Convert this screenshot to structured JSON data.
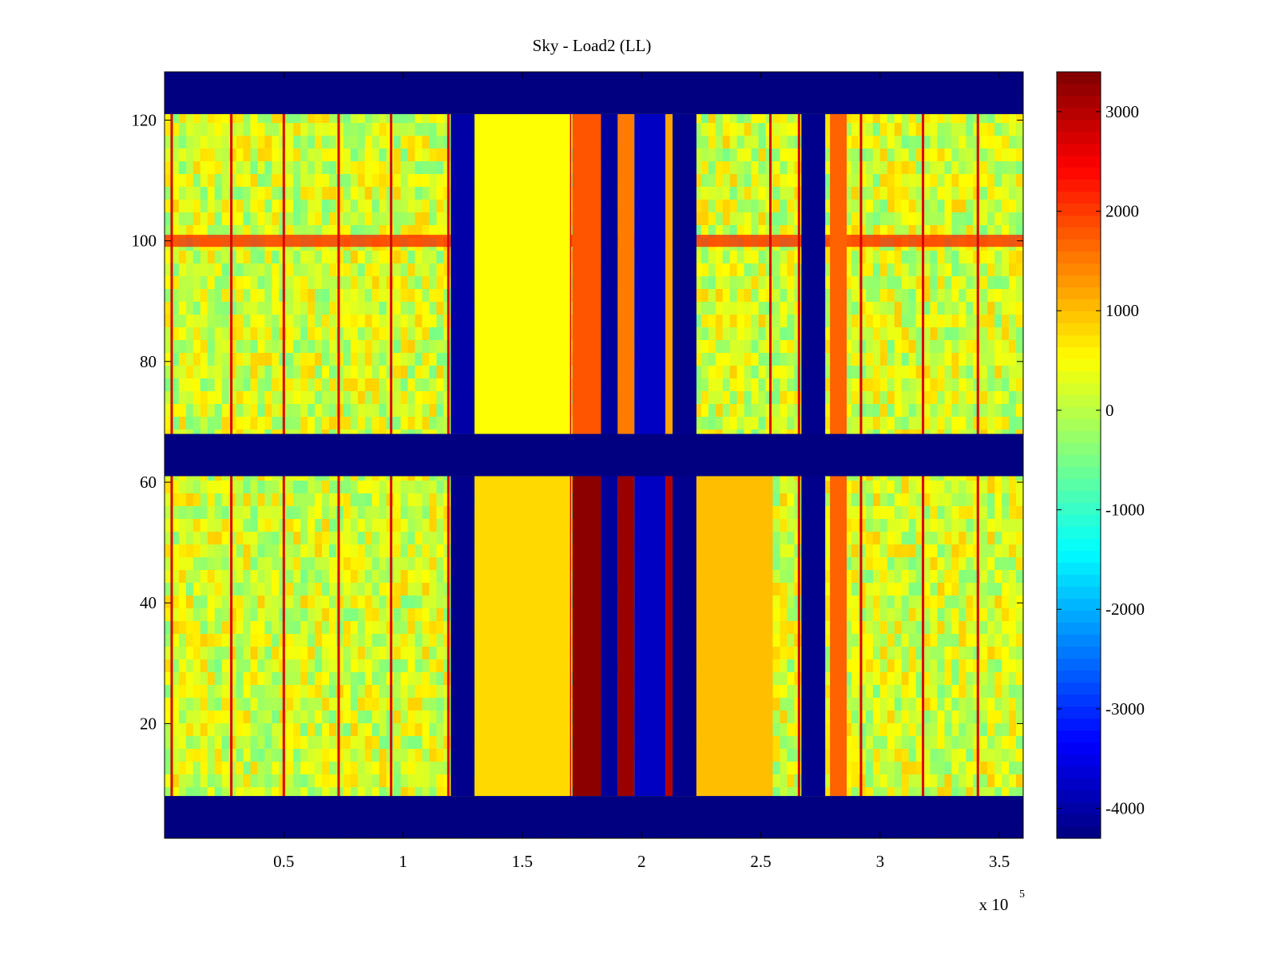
{
  "chart_data": {
    "type": "heatmap",
    "title": "Sky - Load2 (LL)",
    "xlabel": "",
    "ylabel": "",
    "x_multiplier_label": "x 10",
    "x_multiplier_exponent": "5",
    "xlim": [
      0,
      360000
    ],
    "ylim": [
      1,
      128
    ],
    "x_ticks": [
      {
        "value": 50000,
        "label": "0.5"
      },
      {
        "value": 100000,
        "label": "1"
      },
      {
        "value": 150000,
        "label": "1.5"
      },
      {
        "value": 200000,
        "label": "2"
      },
      {
        "value": 250000,
        "label": "2.5"
      },
      {
        "value": 300000,
        "label": "3"
      },
      {
        "value": 350000,
        "label": "3.5"
      }
    ],
    "y_ticks": [
      {
        "value": 20,
        "label": "20"
      },
      {
        "value": 40,
        "label": "40"
      },
      {
        "value": 60,
        "label": "60"
      },
      {
        "value": 80,
        "label": "80"
      },
      {
        "value": 100,
        "label": "100"
      },
      {
        "value": 120,
        "label": "120"
      }
    ],
    "colorbar": {
      "colormap": "jet",
      "range": [
        -4300,
        3400
      ],
      "ticks": [
        {
          "value": 3000,
          "label": "3000"
        },
        {
          "value": 2000,
          "label": "2000"
        },
        {
          "value": 1000,
          "label": "1000"
        },
        {
          "value": 0,
          "label": "0"
        },
        {
          "value": -1000,
          "label": "-1000"
        },
        {
          "value": -2000,
          "label": "-2000"
        },
        {
          "value": -3000,
          "label": "-3000"
        },
        {
          "value": -4000,
          "label": "-4000"
        }
      ]
    },
    "background_value": 200,
    "masked_y_bands": [
      {
        "y": [
          121,
          128
        ],
        "value": -4300
      },
      {
        "y": [
          61,
          68
        ],
        "value": -4300
      },
      {
        "y": [
          1,
          8
        ],
        "value": -4300
      }
    ],
    "x_bands": [
      {
        "x": [
          120000,
          130000
        ],
        "y": [
          8,
          61
        ],
        "value": -4200
      },
      {
        "x": [
          120000,
          130000
        ],
        "y": [
          68,
          121
        ],
        "value": -4000
      },
      {
        "x": [
          130000,
          170000
        ],
        "y": [
          8,
          61
        ],
        "value": 800
      },
      {
        "x": [
          130000,
          170000
        ],
        "y": [
          68,
          121
        ],
        "value": 500
      },
      {
        "x": [
          171000,
          183000
        ],
        "y": [
          8,
          61
        ],
        "value": 3300
      },
      {
        "x": [
          171000,
          183000
        ],
        "y": [
          68,
          121
        ],
        "value": 1800
      },
      {
        "x": [
          183000,
          190000
        ],
        "y": [
          8,
          121
        ],
        "value": -4100
      },
      {
        "x": [
          190000,
          197000
        ],
        "y": [
          8,
          61
        ],
        "value": 3200
      },
      {
        "x": [
          190000,
          197000
        ],
        "y": [
          68,
          121
        ],
        "value": 1500
      },
      {
        "x": [
          197000,
          210000
        ],
        "y": [
          8,
          121
        ],
        "value": -3800
      },
      {
        "x": [
          210000,
          213000
        ],
        "y": [
          8,
          61
        ],
        "value": 3000
      },
      {
        "x": [
          210000,
          213000
        ],
        "y": [
          68,
          121
        ],
        "value": 1200
      },
      {
        "x": [
          213000,
          223000
        ],
        "y": [
          8,
          121
        ],
        "value": -4200
      },
      {
        "x": [
          223000,
          255000
        ],
        "y": [
          8,
          61
        ],
        "value": 1000
      },
      {
        "x": [
          267000,
          277000
        ],
        "y": [
          8,
          121
        ],
        "value": -4200
      },
      {
        "x": [
          279000,
          286000
        ],
        "y": [
          8,
          121
        ],
        "value": 1700
      }
    ],
    "vertical_lines": [
      {
        "x": 3000,
        "value": 2700
      },
      {
        "x": 28000,
        "value": 2700
      },
      {
        "x": 50000,
        "value": 2700
      },
      {
        "x": 73000,
        "value": 2700
      },
      {
        "x": 95000,
        "value": 2700
      },
      {
        "x": 119000,
        "value": 2700
      },
      {
        "x": 170000,
        "value": 2700
      },
      {
        "x": 254000,
        "value": 2700
      },
      {
        "x": 266000,
        "value": 2700
      },
      {
        "x": 292000,
        "value": 2700
      },
      {
        "x": 318000,
        "value": 2700
      },
      {
        "x": 341000,
        "value": 2700
      }
    ],
    "horizontal_stripe": {
      "y": [
        99,
        101
      ],
      "value": 2200
    }
  }
}
